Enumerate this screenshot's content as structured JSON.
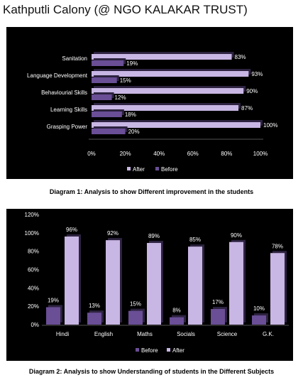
{
  "page": {
    "title": "Kathputli Calony (@ NGO KALAKAR TRUST)"
  },
  "captions": {
    "diagram1": "Diagram 1: Analysis to show Different improvement in the students",
    "diagram2": "Diagram 2: Analysis to show Understanding of students in the Different Subjects"
  },
  "colors": {
    "background": "#000000",
    "before": "#6a4e96",
    "after": "#c8b6e4",
    "text": "#ffffff"
  },
  "chart_data": [
    {
      "type": "bar",
      "orientation": "horizontal",
      "categories": [
        "Sanitation",
        "Language Development",
        "Behaviourial Skills",
        "Learning Skills",
        "Grasping Power"
      ],
      "series": [
        {
          "name": "After",
          "values": [
            83,
            93,
            90,
            87,
            100
          ]
        },
        {
          "name": "Before",
          "values": [
            19,
            15,
            12,
            18,
            20
          ]
        }
      ],
      "value_labels": {
        "After": [
          "83%",
          "93%",
          "90%",
          "87%",
          "100%"
        ],
        "Before": [
          "19%",
          "15%",
          "12%",
          "18%",
          "20%"
        ]
      },
      "xlim": [
        0,
        100
      ],
      "ticks": [
        "0%",
        "20%",
        "40%",
        "60%",
        "80%",
        "100%"
      ],
      "legend_position": "bottom",
      "grid": false
    },
    {
      "type": "bar",
      "orientation": "vertical",
      "categories": [
        "Hindi",
        "English",
        "Maths",
        "Socials",
        "Science",
        "G.K."
      ],
      "series": [
        {
          "name": "Before",
          "values": [
            19,
            13,
            15,
            8,
            17,
            10
          ]
        },
        {
          "name": "After",
          "values": [
            96,
            92,
            89,
            85,
            90,
            78
          ]
        }
      ],
      "value_labels": {
        "Before": [
          "19%",
          "13%",
          "15%",
          "8%",
          "17%",
          "10%"
        ],
        "After": [
          "96%",
          "92%",
          "89%",
          "85%",
          "90%",
          "78%"
        ]
      },
      "ylim": [
        0,
        120
      ],
      "ticks": [
        "0%",
        "20%",
        "40%",
        "60%",
        "80%",
        "100%",
        "120%"
      ],
      "legend_position": "bottom",
      "grid": false
    }
  ]
}
